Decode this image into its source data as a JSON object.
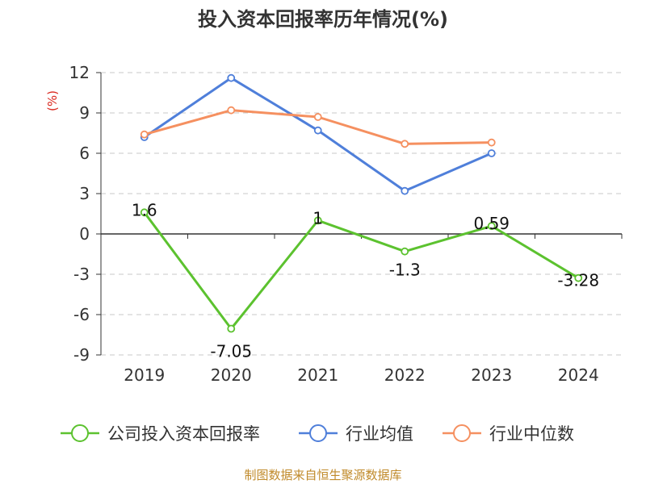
{
  "title": "投入资本回报率历年情况(%)",
  "source": "制图数据来自恒生聚源数据库",
  "colors": {
    "company": "#5cc22f",
    "industry_avg": "#4f7fda",
    "industry_median": "#f59060",
    "unit": "#d9261c",
    "source": "#c08a2a"
  },
  "chart_data": {
    "type": "line",
    "title": "投入资本回报率历年情况(%)",
    "ylabel": "(%)",
    "xlabel": "",
    "ylim": [
      -9,
      12
    ],
    "yticks": [
      12,
      9,
      6,
      3,
      0,
      -3,
      -6,
      -9
    ],
    "ytick_labels": [
      "12",
      "9",
      "6",
      "3",
      "0",
      "-3",
      "-6",
      "-9"
    ],
    "categories": [
      "2019",
      "2020",
      "2021",
      "2022",
      "2023",
      "2024"
    ],
    "grid": true,
    "legend_position": "bottom",
    "series": [
      {
        "name": "公司投入资本回报率",
        "color": "#5cc22f",
        "values": [
          1.6,
          -7.05,
          1,
          -1.3,
          0.59,
          -3.28
        ],
        "labels": [
          "1.6",
          "-7.05",
          "1",
          "-1.3",
          "0.59",
          "-3.28"
        ]
      },
      {
        "name": "行业均值",
        "color": "#4f7fda",
        "values": [
          7.2,
          11.6,
          7.7,
          3.2,
          6.0,
          null
        ]
      },
      {
        "name": "行业中位数",
        "color": "#f59060",
        "values": [
          7.4,
          9.2,
          8.7,
          6.7,
          6.8,
          null
        ]
      }
    ]
  }
}
